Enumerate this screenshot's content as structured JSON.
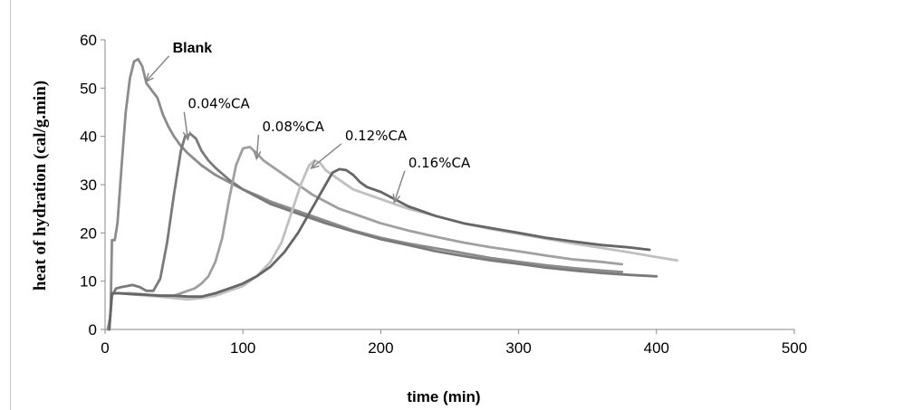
{
  "chart_data": {
    "type": "line",
    "title": "",
    "xlabel": "time (min)",
    "ylabel": "heat of hydration (cal/g.min)",
    "xlim": [
      0,
      500
    ],
    "ylim": [
      0,
      60
    ],
    "xticks": [
      0,
      100,
      200,
      300,
      400,
      500
    ],
    "yticks": [
      0,
      10,
      20,
      30,
      40,
      50,
      60
    ],
    "grid": false,
    "legend": "none",
    "series": [
      {
        "name": "Blank",
        "color": "#8c8c8c",
        "points": [
          [
            2,
            0
          ],
          [
            4,
            3
          ],
          [
            5,
            18.5
          ],
          [
            7,
            18.5
          ],
          [
            9,
            22
          ],
          [
            12,
            34
          ],
          [
            15,
            45
          ],
          [
            18,
            52
          ],
          [
            21,
            55.5
          ],
          [
            24,
            56
          ],
          [
            27,
            54.5
          ],
          [
            30,
            51
          ],
          [
            34,
            49.5
          ],
          [
            38,
            48
          ],
          [
            42,
            44.5
          ],
          [
            46,
            42
          ],
          [
            50,
            40
          ],
          [
            55,
            38
          ],
          [
            60,
            36.5
          ],
          [
            70,
            34
          ],
          [
            80,
            32
          ],
          [
            90,
            30.5
          ],
          [
            100,
            29
          ],
          [
            110,
            27.8
          ],
          [
            120,
            26.5
          ],
          [
            140,
            24.5
          ],
          [
            160,
            22.5
          ],
          [
            180,
            20.5
          ],
          [
            200,
            19
          ],
          [
            220,
            17.8
          ],
          [
            240,
            16.8
          ],
          [
            260,
            15.8
          ],
          [
            280,
            14.8
          ],
          [
            300,
            14
          ],
          [
            320,
            13.3
          ],
          [
            340,
            12.7
          ],
          [
            360,
            12.2
          ],
          [
            375,
            11.9
          ]
        ]
      },
      {
        "name": "0.04%CA",
        "color": "#7a7a7a",
        "points": [
          [
            3,
            0
          ],
          [
            5,
            7
          ],
          [
            8,
            8.5
          ],
          [
            12,
            8.8
          ],
          [
            16,
            9
          ],
          [
            20,
            9.2
          ],
          [
            25,
            8.8
          ],
          [
            30,
            8
          ],
          [
            35,
            8
          ],
          [
            40,
            10.5
          ],
          [
            45,
            18
          ],
          [
            50,
            28
          ],
          [
            55,
            37
          ],
          [
            58,
            40
          ],
          [
            62,
            40.5
          ],
          [
            66,
            39.5
          ],
          [
            70,
            37
          ],
          [
            75,
            35
          ],
          [
            80,
            33.5
          ],
          [
            90,
            31
          ],
          [
            100,
            29
          ],
          [
            110,
            27.5
          ],
          [
            120,
            26
          ],
          [
            140,
            24
          ],
          [
            160,
            22
          ],
          [
            180,
            20.3
          ],
          [
            200,
            18.7
          ],
          [
            220,
            17.5
          ],
          [
            240,
            16.2
          ],
          [
            260,
            15.2
          ],
          [
            280,
            14.3
          ],
          [
            300,
            13.6
          ],
          [
            320,
            12.8
          ],
          [
            340,
            12.2
          ],
          [
            360,
            11.7
          ],
          [
            380,
            11.3
          ],
          [
            400,
            11
          ]
        ]
      },
      {
        "name": "0.08%CA",
        "color": "#a0a0a0",
        "points": [
          [
            3,
            0
          ],
          [
            5,
            7.5
          ],
          [
            10,
            7.5
          ],
          [
            20,
            7.5
          ],
          [
            30,
            7.2
          ],
          [
            40,
            7
          ],
          [
            50,
            7
          ],
          [
            55,
            7.5
          ],
          [
            60,
            8
          ],
          [
            65,
            8.5
          ],
          [
            70,
            9.5
          ],
          [
            75,
            11
          ],
          [
            80,
            14
          ],
          [
            85,
            19
          ],
          [
            90,
            27
          ],
          [
            95,
            34
          ],
          [
            100,
            37.5
          ],
          [
            105,
            37.8
          ],
          [
            110,
            36.5
          ],
          [
            115,
            35
          ],
          [
            120,
            34
          ],
          [
            130,
            32
          ],
          [
            140,
            30
          ],
          [
            150,
            28
          ],
          [
            160,
            26.5
          ],
          [
            170,
            25
          ],
          [
            180,
            24
          ],
          [
            200,
            22
          ],
          [
            220,
            20.5
          ],
          [
            240,
            19.2
          ],
          [
            260,
            18
          ],
          [
            280,
            17
          ],
          [
            300,
            16.2
          ],
          [
            320,
            15.3
          ],
          [
            340,
            14.5
          ],
          [
            360,
            14
          ],
          [
            375,
            13.5
          ]
        ]
      },
      {
        "name": "0.12%CA",
        "color": "#c0c0c0",
        "points": [
          [
            3,
            0
          ],
          [
            5,
            7.5
          ],
          [
            10,
            7.5
          ],
          [
            20,
            7.3
          ],
          [
            30,
            7
          ],
          [
            40,
            6.8
          ],
          [
            50,
            6.5
          ],
          [
            60,
            6.2
          ],
          [
            70,
            6.5
          ],
          [
            80,
            7
          ],
          [
            90,
            8
          ],
          [
            100,
            9
          ],
          [
            110,
            11
          ],
          [
            120,
            14
          ],
          [
            128,
            18
          ],
          [
            135,
            24
          ],
          [
            142,
            30
          ],
          [
            148,
            34
          ],
          [
            152,
            35
          ],
          [
            156,
            34.5
          ],
          [
            160,
            33
          ],
          [
            170,
            31
          ],
          [
            180,
            29
          ],
          [
            200,
            27
          ],
          [
            220,
            25
          ],
          [
            240,
            23.5
          ],
          [
            260,
            22
          ],
          [
            280,
            20.8
          ],
          [
            300,
            19.8
          ],
          [
            320,
            18.8
          ],
          [
            340,
            17.8
          ],
          [
            360,
            16.9
          ],
          [
            380,
            16
          ],
          [
            400,
            15
          ],
          [
            415,
            14.3
          ]
        ]
      },
      {
        "name": "0.16%CA",
        "color": "#666666",
        "points": [
          [
            3,
            0
          ],
          [
            5,
            7.5
          ],
          [
            10,
            7.5
          ],
          [
            20,
            7.3
          ],
          [
            30,
            7.2
          ],
          [
            40,
            7
          ],
          [
            50,
            7
          ],
          [
            60,
            6.8
          ],
          [
            70,
            6.8
          ],
          [
            80,
            7.5
          ],
          [
            90,
            8.5
          ],
          [
            100,
            9.5
          ],
          [
            110,
            11
          ],
          [
            120,
            13
          ],
          [
            130,
            16
          ],
          [
            140,
            20
          ],
          [
            150,
            25
          ],
          [
            160,
            30
          ],
          [
            165,
            32.5
          ],
          [
            170,
            33.2
          ],
          [
            175,
            33
          ],
          [
            180,
            32
          ],
          [
            185,
            30.5
          ],
          [
            190,
            29.5
          ],
          [
            200,
            28.5
          ],
          [
            210,
            27
          ],
          [
            220,
            25.5
          ],
          [
            240,
            23.5
          ],
          [
            260,
            22
          ],
          [
            280,
            21
          ],
          [
            300,
            20
          ],
          [
            320,
            19
          ],
          [
            340,
            18.2
          ],
          [
            360,
            17.5
          ],
          [
            380,
            17
          ],
          [
            395,
            16.5
          ]
        ]
      }
    ],
    "annotations": [
      {
        "text": "Blank",
        "series": "Blank",
        "label_at": [
          49,
          57.4
        ],
        "arrow_to": [
          30,
          51.5
        ]
      },
      {
        "text": "0.04%CA",
        "series": "0.04%CA",
        "label_at": [
          60,
          45.8
        ],
        "arrow_to": [
          60,
          39.5
        ]
      },
      {
        "text": "0.08%CA",
        "series": "0.08%CA",
        "label_at": [
          114,
          41.1
        ],
        "arrow_to": [
          110,
          35.5
        ]
      },
      {
        "text": "0.12%CA",
        "series": "0.12%CA",
        "label_at": [
          174,
          39.2
        ],
        "arrow_to": [
          150,
          33.5
        ]
      },
      {
        "text": "0.16%CA",
        "series": "0.16%CA",
        "label_at": [
          220,
          33.6
        ],
        "arrow_to": [
          210,
          26.5
        ]
      }
    ]
  }
}
